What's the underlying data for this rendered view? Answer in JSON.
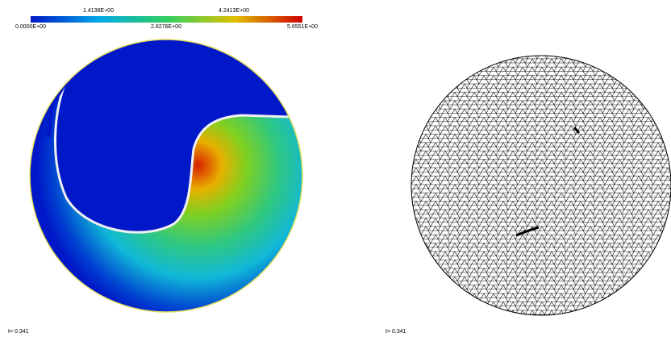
{
  "colorbar": {
    "labels": [
      "0.0000E+00",
      "1.4138E+00",
      "2.8276E+00",
      "4.2413E+00",
      "5.6551E+00"
    ]
  },
  "panels": [
    {
      "time_label": "t= 0.341"
    },
    {
      "time_label": "t= 0.341"
    }
  ]
}
